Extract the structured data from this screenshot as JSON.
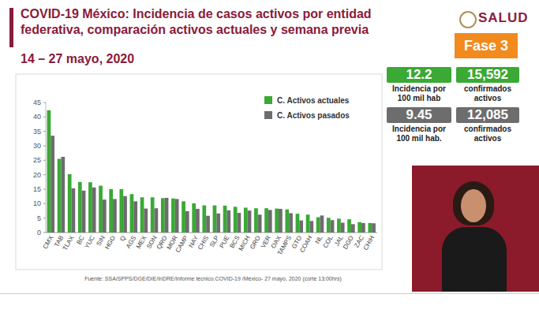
{
  "chart_data": {
    "type": "bar",
    "title": "COVID-19 México: Incidencia de casos activos por entidad federativa, comparación activos actuales y semana previa",
    "subtitle": "14 – 27 mayo, 2020",
    "categories": [
      "CMX",
      "TAB",
      "TLAX",
      "BC",
      "YUC",
      "SIN",
      "HGO",
      "Q",
      "AGS",
      "MEX",
      "SON",
      "QRO",
      "MOR",
      "CAMP",
      "NAY",
      "CHIS",
      "SLP",
      "PUE",
      "BCS",
      "MICH",
      "GRO",
      "VER",
      "OAX",
      "TAMPS",
      "GTO",
      "COAH",
      "NL",
      "COL",
      "JAL",
      "DGO",
      "ZAC",
      "CHIH"
    ],
    "series": [
      {
        "name": "C. Activos actuales",
        "color": "#3aa935",
        "values": [
          42.3,
          25.5,
          20.2,
          17.5,
          17.4,
          16.2,
          15.0,
          15.0,
          13.3,
          12.2,
          12.2,
          11.9,
          11.8,
          10.8,
          10.1,
          9.4,
          9.4,
          9.3,
          8.9,
          8.6,
          8.4,
          8.4,
          8.3,
          8.0,
          6.5,
          6.2,
          5.3,
          5.1,
          4.8,
          4.6,
          3.6,
          3.3
        ]
      },
      {
        "name": "C. Activos pasados",
        "color": "#6d6d6d",
        "values": [
          33.5,
          26.2,
          15.3,
          14.5,
          15.6,
          11.4,
          11.6,
          12.6,
          10.8,
          8.3,
          8.4,
          12.0,
          11.6,
          7.4,
          8.2,
          5.8,
          6.6,
          7.7,
          6.8,
          7.6,
          6.2,
          7.8,
          8.2,
          6.7,
          4.2,
          4.0,
          5.9,
          4.3,
          3.4,
          2.9,
          3.3,
          3.2
        ]
      }
    ],
    "ylim": [
      0,
      45
    ],
    "yticks": [
      0,
      5,
      10,
      15,
      20,
      25,
      30,
      35,
      40,
      45
    ],
    "grid": false,
    "legend": "upper right"
  },
  "panel": {
    "logo": "SALUD",
    "phase": "Fase 3",
    "current": {
      "incidence": "12.2",
      "incidence_label": "Incidencia por 100 mil hab",
      "confirmed": "15,592",
      "confirmed_label": "confirmados activos"
    },
    "previous": {
      "incidence": "9.45",
      "incidence_label": "Incidencia por 100 mil hab.",
      "confirmed": "12,085",
      "confirmed_label": "confirmados activos"
    },
    "source": "Fuente: SSA/SPPS/DGE/DIE/InDRE/Informe técnico.COVID-19 /México- 27 mayo, 2020 (corte 13:00hrs)"
  }
}
